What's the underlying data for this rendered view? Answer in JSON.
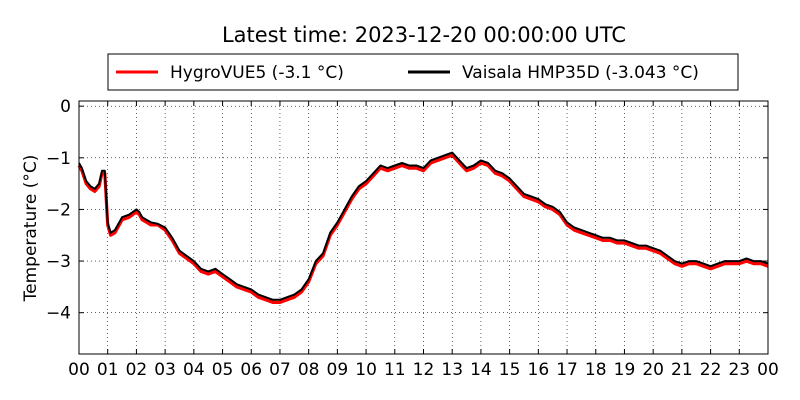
{
  "chart_data": {
    "type": "line",
    "title": "Latest time: 2023-12-20 00:00:00 UTC",
    "xlabel": "",
    "ylabel": "Temperature (°C)",
    "xlim": [
      0,
      24
    ],
    "ylim": [
      -4.8,
      0.1
    ],
    "grid": true,
    "legend": "top",
    "x_ticks": [
      "00",
      "01",
      "02",
      "03",
      "04",
      "05",
      "06",
      "07",
      "08",
      "09",
      "10",
      "11",
      "12",
      "13",
      "14",
      "15",
      "16",
      "17",
      "18",
      "19",
      "20",
      "21",
      "22",
      "23",
      "00"
    ],
    "y_ticks": [
      0,
      -1,
      -2,
      -3,
      -4
    ],
    "series": [
      {
        "name": "HygroVUE5 (-3.1 °C)",
        "color": "#ff0000",
        "x": [
          0,
          0.1,
          0.25,
          0.4,
          0.55,
          0.7,
          0.8,
          0.9,
          1.0,
          1.1,
          1.25,
          1.5,
          1.75,
          2.0,
          2.1,
          2.2,
          2.35,
          2.5,
          2.75,
          3.0,
          3.25,
          3.5,
          3.75,
          4.0,
          4.25,
          4.5,
          4.75,
          5.0,
          5.25,
          5.5,
          5.75,
          6.0,
          6.25,
          6.5,
          6.75,
          7.0,
          7.25,
          7.5,
          7.75,
          8.0,
          8.25,
          8.5,
          8.75,
          9.0,
          9.25,
          9.5,
          9.75,
          10.0,
          10.25,
          10.5,
          10.75,
          11.0,
          11.25,
          11.5,
          11.75,
          12.0,
          12.25,
          12.5,
          12.75,
          13.0,
          13.25,
          13.5,
          13.75,
          14.0,
          14.25,
          14.5,
          14.75,
          15.0,
          15.25,
          15.5,
          15.75,
          16.0,
          16.25,
          16.5,
          16.75,
          17.0,
          17.25,
          17.5,
          17.75,
          18.0,
          18.25,
          18.5,
          18.75,
          19.0,
          19.25,
          19.5,
          19.75,
          20.0,
          20.25,
          20.5,
          20.75,
          21.0,
          21.25,
          21.5,
          21.75,
          22.0,
          22.25,
          22.5,
          22.75,
          23.0,
          23.25,
          23.5,
          23.75,
          24.0
        ],
        "y": [
          -1.15,
          -1.25,
          -1.5,
          -1.6,
          -1.65,
          -1.55,
          -1.3,
          -1.3,
          -2.3,
          -2.5,
          -2.45,
          -2.2,
          -2.15,
          -2.05,
          -2.1,
          -2.2,
          -2.25,
          -2.3,
          -2.3,
          -2.4,
          -2.6,
          -2.85,
          -2.95,
          -3.05,
          -3.2,
          -3.25,
          -3.2,
          -3.3,
          -3.4,
          -3.5,
          -3.55,
          -3.6,
          -3.7,
          -3.75,
          -3.8,
          -3.8,
          -3.75,
          -3.7,
          -3.6,
          -3.4,
          -3.05,
          -2.9,
          -2.5,
          -2.3,
          -2.05,
          -1.8,
          -1.6,
          -1.5,
          -1.35,
          -1.2,
          -1.25,
          -1.2,
          -1.15,
          -1.2,
          -1.2,
          -1.25,
          -1.1,
          -1.05,
          -1.0,
          -0.95,
          -1.1,
          -1.25,
          -1.2,
          -1.1,
          -1.15,
          -1.3,
          -1.35,
          -1.45,
          -1.6,
          -1.75,
          -1.8,
          -1.85,
          -1.95,
          -2.0,
          -2.1,
          -2.3,
          -2.4,
          -2.45,
          -2.5,
          -2.55,
          -2.6,
          -2.6,
          -2.65,
          -2.65,
          -2.7,
          -2.75,
          -2.75,
          -2.8,
          -2.85,
          -2.95,
          -3.05,
          -3.1,
          -3.05,
          -3.05,
          -3.1,
          -3.15,
          -3.1,
          -3.05,
          -3.05,
          -3.05,
          -3.0,
          -3.05,
          -3.05,
          -3.1
        ]
      },
      {
        "name": "Vaisala HMP35D (-3.043 °C)",
        "color": "#000000",
        "x": [
          0,
          0.1,
          0.25,
          0.4,
          0.55,
          0.7,
          0.8,
          0.9,
          1.0,
          1.1,
          1.25,
          1.5,
          1.75,
          2.0,
          2.1,
          2.2,
          2.35,
          2.5,
          2.75,
          3.0,
          3.25,
          3.5,
          3.75,
          4.0,
          4.25,
          4.5,
          4.75,
          5.0,
          5.25,
          5.5,
          5.75,
          6.0,
          6.25,
          6.5,
          6.75,
          7.0,
          7.25,
          7.5,
          7.75,
          8.0,
          8.25,
          8.5,
          8.75,
          9.0,
          9.25,
          9.5,
          9.75,
          10.0,
          10.25,
          10.5,
          10.75,
          11.0,
          11.25,
          11.5,
          11.75,
          12.0,
          12.25,
          12.5,
          12.75,
          13.0,
          13.25,
          13.5,
          13.75,
          14.0,
          14.25,
          14.5,
          14.75,
          15.0,
          15.25,
          15.5,
          15.75,
          16.0,
          16.25,
          16.5,
          16.75,
          17.0,
          17.25,
          17.5,
          17.75,
          18.0,
          18.25,
          18.5,
          18.75,
          19.0,
          19.25,
          19.5,
          19.75,
          20.0,
          20.25,
          20.5,
          20.75,
          21.0,
          21.25,
          21.5,
          21.75,
          22.0,
          22.25,
          22.5,
          22.75,
          23.0,
          23.25,
          23.5,
          23.75,
          24.0
        ],
        "y": [
          -1.1,
          -1.2,
          -1.45,
          -1.55,
          -1.6,
          -1.5,
          -1.25,
          -1.25,
          -2.25,
          -2.45,
          -2.4,
          -2.15,
          -2.1,
          -2.0,
          -2.05,
          -2.15,
          -2.2,
          -2.25,
          -2.28,
          -2.35,
          -2.55,
          -2.8,
          -2.9,
          -3.0,
          -3.15,
          -3.2,
          -3.15,
          -3.25,
          -3.35,
          -3.45,
          -3.5,
          -3.55,
          -3.65,
          -3.7,
          -3.75,
          -3.75,
          -3.7,
          -3.65,
          -3.55,
          -3.35,
          -3.0,
          -2.85,
          -2.45,
          -2.25,
          -2.0,
          -1.75,
          -1.55,
          -1.45,
          -1.3,
          -1.15,
          -1.2,
          -1.15,
          -1.1,
          -1.15,
          -1.15,
          -1.2,
          -1.05,
          -1.0,
          -0.95,
          -0.9,
          -1.05,
          -1.2,
          -1.15,
          -1.05,
          -1.1,
          -1.25,
          -1.3,
          -1.4,
          -1.55,
          -1.7,
          -1.75,
          -1.8,
          -1.9,
          -1.95,
          -2.05,
          -2.25,
          -2.35,
          -2.4,
          -2.45,
          -2.5,
          -2.55,
          -2.55,
          -2.6,
          -2.6,
          -2.65,
          -2.7,
          -2.7,
          -2.75,
          -2.8,
          -2.9,
          -3.0,
          -3.05,
          -3.0,
          -3.0,
          -3.05,
          -3.1,
          -3.05,
          -3.0,
          -3.0,
          -3.0,
          -2.95,
          -3.0,
          -3.0,
          -3.05
        ]
      }
    ]
  }
}
